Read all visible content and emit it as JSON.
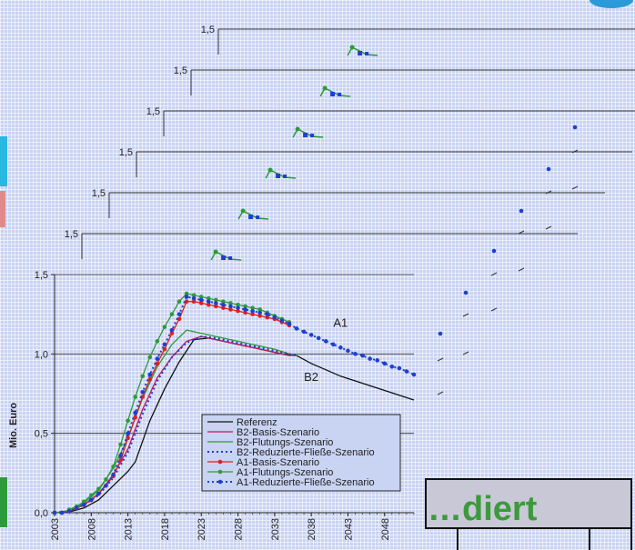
{
  "background_text": "…diert",
  "chart_data": {
    "type": "line",
    "xlabel": "",
    "ylabel": "Mio. Euro",
    "ylim": [
      0,
      1.5
    ],
    "yticks": [
      "0,0",
      "0,5",
      "1,0",
      "1,5"
    ],
    "xlim": [
      2003,
      2052
    ],
    "xticks": [
      "2003",
      "2008",
      "2013",
      "2018",
      "2023",
      "2028",
      "2033",
      "2038",
      "2043",
      "2048"
    ],
    "ghost_axis_label": "1,5",
    "annotations": [
      {
        "text": "A1",
        "x": 2041,
        "y": 1.17
      },
      {
        "text": "B2",
        "x": 2037,
        "y": 0.83
      }
    ],
    "legend_position": "bottom-right",
    "series": [
      {
        "name": "Referenz",
        "color": "#111111",
        "style": "solid",
        "marker": "none",
        "x": [
          2003,
          2005,
          2007,
          2009,
          2011,
          2013,
          2014,
          2016,
          2018,
          2020,
          2022,
          2024,
          2026,
          2028,
          2030,
          2032,
          2034,
          2036,
          2038,
          2040,
          2042,
          2044,
          2046,
          2048,
          2050,
          2052
        ],
        "y": [
          0,
          0.005,
          0.03,
          0.08,
          0.17,
          0.26,
          0.32,
          0.58,
          0.78,
          0.95,
          1.09,
          1.1,
          1.08,
          1.06,
          1.04,
          1.02,
          1.0,
          0.99,
          0.94,
          0.9,
          0.86,
          0.83,
          0.8,
          0.77,
          0.74,
          0.71
        ]
      },
      {
        "name": "B2-Basis-Szenario",
        "color": "#c2185b",
        "style": "solid",
        "marker": "none",
        "x": [
          2003,
          2005,
          2007,
          2009,
          2011,
          2013,
          2015,
          2017,
          2019,
          2021,
          2023,
          2025,
          2027,
          2029,
          2031,
          2033,
          2035,
          2036
        ],
        "y": [
          0,
          0.01,
          0.05,
          0.12,
          0.24,
          0.4,
          0.65,
          0.85,
          0.98,
          1.08,
          1.11,
          1.09,
          1.07,
          1.05,
          1.03,
          1.01,
          0.99,
          0.99
        ]
      },
      {
        "name": "B2-Flutungs-Szenario",
        "color": "#2e9b3a",
        "style": "solid",
        "marker": "none",
        "x": [
          2003,
          2005,
          2007,
          2009,
          2011,
          2013,
          2015,
          2017,
          2019,
          2021,
          2023,
          2025,
          2027,
          2029,
          2031,
          2033,
          2035,
          2036
        ],
        "y": [
          0,
          0.01,
          0.06,
          0.14,
          0.28,
          0.47,
          0.72,
          0.92,
          1.06,
          1.15,
          1.13,
          1.11,
          1.09,
          1.07,
          1.05,
          1.03,
          1.0,
          0.99
        ]
      },
      {
        "name": "B2-Reduzierte-Fließe-Szenario",
        "color": "#1f3fcf",
        "style": "dotted",
        "marker": "none",
        "x": [
          2003,
          2005,
          2007,
          2009,
          2011,
          2013,
          2015,
          2017,
          2019,
          2021,
          2023,
          2025,
          2027,
          2029,
          2031,
          2033,
          2035,
          2036
        ],
        "y": [
          0,
          0.01,
          0.05,
          0.11,
          0.22,
          0.38,
          0.62,
          0.83,
          0.98,
          1.07,
          1.11,
          1.1,
          1.08,
          1.06,
          1.04,
          1.02,
          1.0,
          0.99
        ]
      },
      {
        "name": "A1-Basis-Szenario",
        "color": "#e02020",
        "style": "solid",
        "marker": "circle",
        "x": [
          2003,
          2004,
          2005,
          2006,
          2007,
          2008,
          2009,
          2010,
          2011,
          2012,
          2013,
          2014,
          2015,
          2016,
          2017,
          2018,
          2019,
          2020,
          2021,
          2022,
          2023,
          2024,
          2025,
          2026,
          2027,
          2028,
          2029,
          2030,
          2031,
          2032,
          2033,
          2034,
          2035
        ],
        "y": [
          0,
          0,
          0.01,
          0.03,
          0.05,
          0.08,
          0.12,
          0.17,
          0.23,
          0.33,
          0.47,
          0.6,
          0.73,
          0.84,
          0.94,
          1.03,
          1.13,
          1.22,
          1.33,
          1.33,
          1.32,
          1.31,
          1.3,
          1.29,
          1.28,
          1.27,
          1.26,
          1.25,
          1.24,
          1.23,
          1.22,
          1.2,
          1.18
        ]
      },
      {
        "name": "A1-Flutungs-Szenario",
        "color": "#2e9b3a",
        "style": "solid",
        "marker": "circle",
        "x": [
          2003,
          2004,
          2005,
          2006,
          2007,
          2008,
          2009,
          2010,
          2011,
          2012,
          2013,
          2014,
          2015,
          2016,
          2017,
          2018,
          2019,
          2020,
          2021,
          2022,
          2023,
          2024,
          2025,
          2026,
          2027,
          2028,
          2029,
          2030,
          2031,
          2032,
          2033,
          2034,
          2035
        ],
        "y": [
          0,
          0,
          0.02,
          0.04,
          0.07,
          0.11,
          0.15,
          0.21,
          0.29,
          0.43,
          0.58,
          0.73,
          0.86,
          0.98,
          1.08,
          1.17,
          1.25,
          1.33,
          1.38,
          1.37,
          1.36,
          1.35,
          1.34,
          1.33,
          1.32,
          1.31,
          1.3,
          1.29,
          1.28,
          1.26,
          1.24,
          1.22,
          1.2
        ]
      },
      {
        "name": "A1-Reduzierte-Fließe-Szenario",
        "color": "#1f3fcf",
        "style": "dotted",
        "marker": "circle",
        "x": [
          2003,
          2004,
          2005,
          2006,
          2007,
          2008,
          2009,
          2010,
          2011,
          2012,
          2013,
          2014,
          2015,
          2016,
          2017,
          2018,
          2019,
          2020,
          2021,
          2022,
          2023,
          2024,
          2025,
          2026,
          2027,
          2028,
          2029,
          2030,
          2031,
          2032,
          2033,
          2034,
          2035,
          2036,
          2037,
          2038,
          2039,
          2040,
          2041,
          2042,
          2043,
          2044,
          2045,
          2046,
          2047,
          2048,
          2049,
          2050,
          2051,
          2052
        ],
        "y": [
          0,
          0,
          0.01,
          0.03,
          0.05,
          0.08,
          0.12,
          0.17,
          0.24,
          0.36,
          0.5,
          0.63,
          0.76,
          0.87,
          0.97,
          1.06,
          1.15,
          1.25,
          1.36,
          1.35,
          1.34,
          1.33,
          1.32,
          1.31,
          1.3,
          1.29,
          1.28,
          1.27,
          1.26,
          1.25,
          1.23,
          1.21,
          1.19,
          1.16,
          1.14,
          1.12,
          1.1,
          1.08,
          1.06,
          1.04,
          1.02,
          1.0,
          0.99,
          0.97,
          0.96,
          0.94,
          0.92,
          0.91,
          0.89,
          0.87
        ]
      }
    ]
  }
}
